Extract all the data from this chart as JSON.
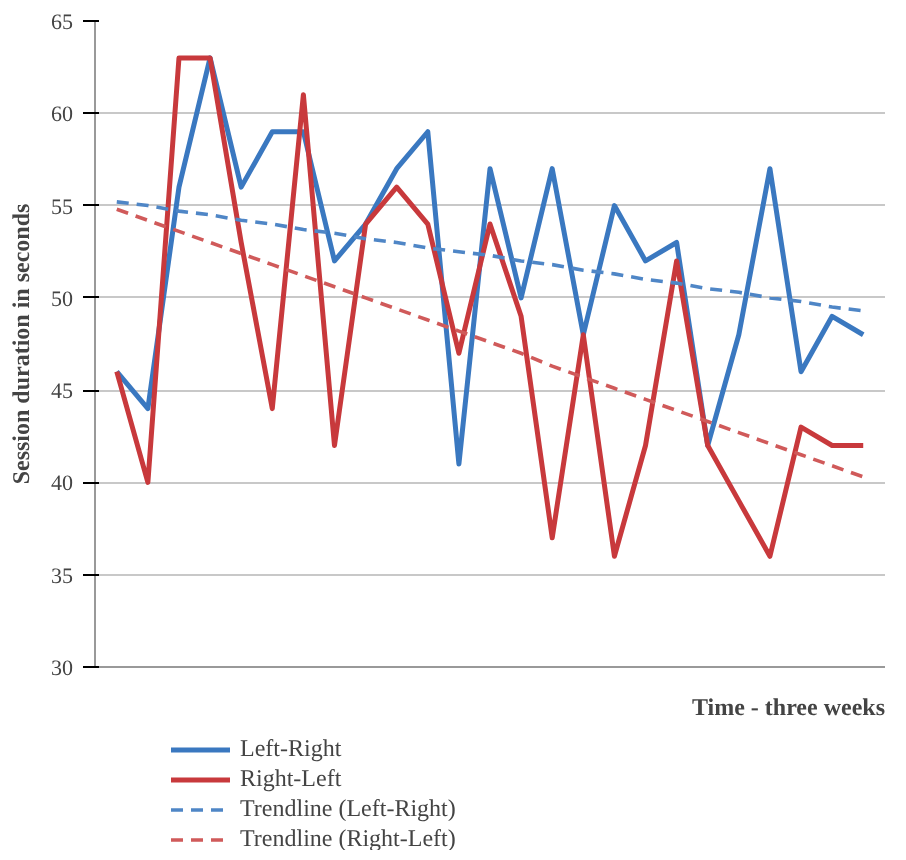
{
  "chart_data": {
    "type": "line",
    "xlabel": "Time - three weeks",
    "ylabel": "Session duration in seconds",
    "categories": [
      null,
      null,
      null,
      null,
      null,
      null,
      null,
      null,
      null,
      null,
      null,
      null,
      null,
      null,
      null,
      null,
      null,
      null,
      null,
      null,
      null,
      null,
      null,
      null,
      null
    ],
    "series": [
      {
        "name": "Left-Right",
        "color": "#3a78c0",
        "line_style": "solid",
        "values": [
          46,
          44,
          56,
          63,
          56,
          59,
          59,
          52,
          54,
          57,
          59,
          41,
          57,
          50,
          57,
          48,
          55,
          52,
          53,
          42,
          48,
          57,
          46,
          49,
          48
        ]
      },
      {
        "name": "Right-Left",
        "color": "#c8393c",
        "line_style": "solid",
        "values": [
          46,
          40,
          63,
          63,
          53,
          44,
          61,
          42,
          54,
          56,
          54,
          47,
          54,
          49,
          37,
          48,
          36,
          42,
          52,
          42,
          39,
          36,
          43,
          42,
          42
        ]
      },
      {
        "name": "Trendline (Left-Right)",
        "color": "#4f86c6",
        "line_style": "dashed",
        "values": [
          55.2,
          55.0,
          54.7,
          54.5,
          54.2,
          54.0,
          53.7,
          53.5,
          53.2,
          53.0,
          52.7,
          52.5,
          52.3,
          52.0,
          51.8,
          51.5,
          51.3,
          51.0,
          50.8,
          50.5,
          50.3,
          50.0,
          49.8,
          49.5,
          49.3
        ]
      },
      {
        "name": "Trendline (Right-Left)",
        "color": "#d05a5a",
        "line_style": "dashed",
        "values": [
          54.8,
          54.2,
          53.6,
          53.0,
          52.4,
          51.8,
          51.2,
          50.6,
          50.0,
          49.4,
          48.8,
          48.2,
          47.6,
          47.0,
          46.3,
          45.7,
          45.1,
          44.5,
          43.9,
          43.3,
          42.7,
          42.1,
          41.5,
          40.9,
          40.3
        ]
      }
    ],
    "ylim": [
      30,
      65
    ],
    "yticks": [
      30,
      35,
      40,
      45,
      50,
      55,
      60,
      65
    ],
    "grid": "y",
    "legend": "bottom left"
  }
}
